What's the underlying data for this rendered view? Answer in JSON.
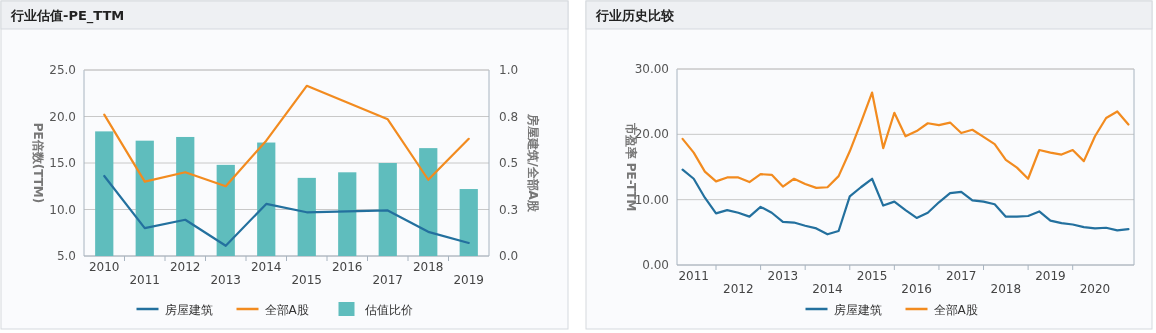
{
  "chart_data": [
    {
      "type": "bar",
      "title": "行业估值-PE_TTM",
      "ylabel": "PE倍数(TTM)",
      "y2label": "房屋建筑/全部A股",
      "categories": [
        "2010",
        "2011",
        "2012",
        "2013",
        "2014",
        "2015",
        "2016",
        "2017",
        "2018",
        "2019"
      ],
      "series": [
        {
          "name": "房屋建筑",
          "type": "line",
          "color": "#23709e",
          "values": [
            13.6,
            8.0,
            8.9,
            6.1,
            10.6,
            9.7,
            9.8,
            9.9,
            7.6,
            6.4
          ]
        },
        {
          "name": "全部A股",
          "type": "line",
          "color": "#f28b1f",
          "values": [
            20.2,
            13.0,
            14.0,
            12.5,
            17.4,
            23.3,
            21.5,
            19.7,
            13.2,
            17.6
          ]
        },
        {
          "name": "估值比价",
          "axis": "y2",
          "color": "#5fbdbd",
          "values": [
            0.67,
            0.62,
            0.64,
            0.49,
            0.61,
            0.42,
            0.45,
            0.5,
            0.58,
            0.36
          ]
        }
      ],
      "ylim": [
        5,
        25
      ],
      "yticks": [
        {
          "value": 5,
          "label": "5.0"
        },
        {
          "value": 10,
          "label": "10.0"
        },
        {
          "value": 15,
          "label": "15.0"
        },
        {
          "value": 20,
          "label": "20.0"
        },
        {
          "value": 25,
          "label": "25.0"
        }
      ],
      "y2lim": [
        0,
        1
      ],
      "y2ticks": [
        {
          "value": 0,
          "label": "0.0"
        },
        {
          "value": 0.25,
          "label": "0.3"
        },
        {
          "value": 0.5,
          "label": "0.5"
        },
        {
          "value": 0.75,
          "label": "0.8"
        },
        {
          "value": 1,
          "label": "1.0"
        }
      ],
      "grid": "y",
      "legend": "bottom"
    },
    {
      "type": "line",
      "title": "行业历史比较",
      "ylabel": "市盈率 PE-TTM",
      "categories": [
        null,
        "2011",
        null,
        null,
        null,
        "2012",
        null,
        null,
        null,
        "2013",
        null,
        null,
        null,
        "2014",
        null,
        null,
        null,
        "2015",
        null,
        null,
        null,
        "2016",
        null,
        null,
        null,
        "2017",
        null,
        null,
        null,
        "2018",
        null,
        null,
        null,
        "2019",
        null,
        null,
        null,
        "2020",
        null,
        null,
        null
      ],
      "series": [
        {
          "name": "房屋建筑",
          "color": "#23709e",
          "values": [
            14.6,
            13.2,
            10.3,
            7.9,
            8.4,
            8.0,
            7.4,
            8.9,
            8.0,
            6.6,
            6.5,
            6.0,
            5.6,
            4.7,
            5.2,
            10.5,
            11.9,
            13.2,
            9.1,
            9.7,
            8.4,
            7.2,
            8.0,
            9.6,
            11.0,
            11.2,
            9.9,
            9.7,
            9.3,
            7.4,
            7.4,
            7.5,
            8.2,
            6.8,
            6.4,
            6.2,
            5.8,
            5.6,
            5.7,
            5.3,
            5.5
          ]
        },
        {
          "name": "全部A股",
          "color": "#f28b1f",
          "values": [
            19.3,
            17.2,
            14.3,
            12.8,
            13.4,
            13.4,
            12.7,
            13.9,
            13.8,
            12.0,
            13.2,
            12.4,
            11.8,
            11.9,
            13.6,
            17.4,
            21.8,
            26.4,
            17.9,
            23.3,
            19.7,
            20.5,
            21.7,
            21.4,
            21.8,
            20.2,
            20.7,
            19.6,
            18.5,
            16.1,
            14.9,
            13.2,
            17.6,
            17.2,
            16.9,
            17.6,
            15.9,
            19.7,
            22.5,
            23.5,
            21.5
          ]
        }
      ],
      "ylim": [
        0,
        30
      ],
      "yticks": [
        {
          "value": 0,
          "label": "0.00"
        },
        {
          "value": 10,
          "label": "10.00"
        },
        {
          "value": 20,
          "label": "20.00"
        },
        {
          "value": 30,
          "label": "30.00"
        }
      ],
      "grid": "y",
      "legend": "bottom"
    }
  ]
}
